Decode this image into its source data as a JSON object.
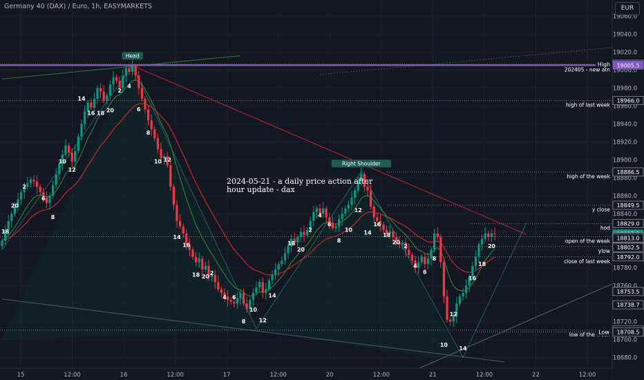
{
  "header": {
    "title": "Germany 40 (DAX) / Euro, 1h, EASYMARKETS",
    "currency": "EUR"
  },
  "annotation": "2024-05-21 - a daily price action after hour update - dax",
  "chart_data": {
    "type": "candlestick",
    "title": "Germany 40 (DAX) / Euro, 1h, EASYMARKETS",
    "ylim": [
      18668,
      19078
    ],
    "y_ticks": [
      19060.0,
      19040.0,
      19020.0,
      19000.0,
      18980.0,
      18960.0,
      18940.0,
      18920.0,
      18900.0,
      18880.0,
      18860.0,
      18840.0,
      18820.0,
      18800.0,
      18780.0,
      18760.0,
      18740.0,
      18720.0,
      18700.0,
      18680.0
    ],
    "x_ticks": [
      "15",
      "12:00",
      "16",
      "12:00",
      "17",
      "12:00",
      "20",
      "12:00",
      "21",
      "12:00",
      "22",
      "12:00"
    ],
    "colors": {
      "up": "#089981",
      "down": "#f23645",
      "ema_fast": "#2e7d32",
      "ema_slow": "#c62828",
      "accent": "#7e57c2"
    },
    "levels": [
      {
        "label": "High",
        "value": 19006.5,
        "tag": "19006.5"
      },
      {
        "label": "202405 - new ath",
        "value": 19005.5,
        "tag": "19005.5"
      },
      {
        "label": "high of last week",
        "value": 18966.0,
        "tag": "18966.0"
      },
      {
        "label": "high of the week",
        "value": 18886.5,
        "tag": "18886.5"
      },
      {
        "label": "y close",
        "value": 18849.5,
        "tag": "18849.5"
      },
      {
        "label": "hod",
        "value": 18829.0,
        "tag": "18829.0"
      },
      {
        "label": "open of the week",
        "value": 18814.5,
        "tag": "18814.5"
      },
      {
        "label": "ylow",
        "value": 18803.5,
        "tag": "18803.5"
      },
      {
        "label": "close of last week",
        "value": 18792.0,
        "tag": "18792.0"
      },
      {
        "label": "low of the week",
        "value": 18710.5,
        "tag": "18710.5"
      },
      {
        "label": "Low",
        "value": 18708.5,
        "tag": "18708.5"
      }
    ],
    "price_tags": [
      {
        "value": 18817.5,
        "text": "18817.5",
        "current": true
      },
      {
        "value": 18814.5,
        "text": "18814.5"
      },
      {
        "value": 18813.0,
        "text": "18813.0"
      },
      {
        "value": 18802.5,
        "text": "18802.5"
      },
      {
        "value": 18753.5,
        "text": "18753.5"
      },
      {
        "value": 18738.7,
        "text": "18738.7"
      }
    ],
    "patterns": [
      {
        "label": "Head",
        "index": 41,
        "value": 19007
      },
      {
        "label": "Right Shoulder",
        "index": 113,
        "value": 18887
      }
    ],
    "wave_labels": [
      {
        "t": "18",
        "i": 1,
        "v": 18818
      },
      {
        "t": "20",
        "i": 4,
        "v": 18847
      },
      {
        "t": "2",
        "i": 7,
        "v": 18868
      },
      {
        "t": "6",
        "i": 13,
        "v": 18855
      },
      {
        "t": "8",
        "i": 16,
        "v": 18834
      },
      {
        "t": "10",
        "i": 19,
        "v": 18896
      },
      {
        "t": "12",
        "i": 22,
        "v": 18887
      },
      {
        "t": "14",
        "i": 25,
        "v": 18966
      },
      {
        "t": "16",
        "i": 28,
        "v": 18950
      },
      {
        "t": "18",
        "i": 31,
        "v": 18950
      },
      {
        "t": "20",
        "i": 34,
        "v": 18953
      },
      {
        "t": "2",
        "i": 37,
        "v": 18975
      },
      {
        "t": "4",
        "i": 40,
        "v": 18980
      },
      {
        "t": "6",
        "i": 43,
        "v": 18954
      },
      {
        "t": "8",
        "i": 46,
        "v": 18928
      },
      {
        "t": "10",
        "i": 49,
        "v": 18896
      },
      {
        "t": "12",
        "i": 52,
        "v": 18898
      },
      {
        "t": "14",
        "i": 55,
        "v": 18812
      },
      {
        "t": "16",
        "i": 58,
        "v": 18803
      },
      {
        "t": "18",
        "i": 61,
        "v": 18770
      },
      {
        "t": "20",
        "i": 64,
        "v": 18768
      },
      {
        "t": "2",
        "i": 66,
        "v": 18772
      },
      {
        "t": "4",
        "i": 70,
        "v": 18745
      },
      {
        "t": "6",
        "i": 73,
        "v": 18745
      },
      {
        "t": "8",
        "i": 76,
        "v": 18718
      },
      {
        "t": "10",
        "i": 79,
        "v": 18731
      },
      {
        "t": "12",
        "i": 82,
        "v": 18719
      },
      {
        "t": "14",
        "i": 85,
        "v": 18747
      },
      {
        "t": "18",
        "i": 91,
        "v": 18805
      },
      {
        "t": "20",
        "i": 94,
        "v": 18798
      },
      {
        "t": "2",
        "i": 97,
        "v": 18820
      },
      {
        "t": "4",
        "i": 100,
        "v": 18836
      },
      {
        "t": "6",
        "i": 103,
        "v": 18826
      },
      {
        "t": "8",
        "i": 106,
        "v": 18808
      },
      {
        "t": "10",
        "i": 109,
        "v": 18820
      },
      {
        "t": "12",
        "i": 112,
        "v": 18842
      },
      {
        "t": "14",
        "i": 115,
        "v": 18817
      },
      {
        "t": "16",
        "i": 118,
        "v": 18826
      },
      {
        "t": "18",
        "i": 121,
        "v": 18814
      },
      {
        "t": "20",
        "i": 124,
        "v": 18806
      },
      {
        "t": "2",
        "i": 127,
        "v": 18802
      },
      {
        "t": "4",
        "i": 130,
        "v": 18780
      },
      {
        "t": "6",
        "i": 133,
        "v": 18773
      },
      {
        "t": "8",
        "i": 136,
        "v": 18788
      },
      {
        "t": "10",
        "i": 139,
        "v": 18692
      },
      {
        "t": "12",
        "i": 142,
        "v": 18726
      },
      {
        "t": "14",
        "i": 145,
        "v": 18688
      },
      {
        "t": "16",
        "i": 148,
        "v": 18766
      },
      {
        "t": "18",
        "i": 151,
        "v": 18782
      },
      {
        "t": "20",
        "i": 154,
        "v": 18802
      }
    ],
    "close": [
      18810,
      18822,
      18832,
      18840,
      18848,
      18856,
      18864,
      18870,
      18874,
      18878,
      18876,
      18870,
      18864,
      18858,
      18852,
      18860,
      18872,
      18884,
      18896,
      18906,
      18916,
      18908,
      18898,
      18910,
      18926,
      18940,
      18954,
      18964,
      18958,
      18968,
      18980,
      18976,
      18966,
      18972,
      18984,
      18992,
      18988,
      18980,
      18994,
      19002,
      18998,
      19004,
      18994,
      18980,
      18968,
      18956,
      18944,
      18934,
      18924,
      18912,
      18902,
      18904,
      18894,
      18870,
      18850,
      18832,
      18826,
      18818,
      18806,
      18800,
      18792,
      18786,
      18790,
      18778,
      18782,
      18770,
      18772,
      18764,
      18756,
      18752,
      18748,
      18744,
      18742,
      18740,
      18746,
      18752,
      18740,
      18734,
      18744,
      18752,
      18758,
      18764,
      18752,
      18756,
      18766,
      18772,
      18778,
      18784,
      18788,
      18796,
      18804,
      18812,
      18808,
      18814,
      18820,
      18816,
      18822,
      18832,
      18842,
      18846,
      18840,
      18846,
      18836,
      18830,
      18824,
      18826,
      18834,
      18840,
      18846,
      18850,
      18858,
      18866,
      18876,
      18884,
      18870,
      18866,
      18848,
      18836,
      18832,
      18828,
      18822,
      18818,
      18820,
      18814,
      18808,
      18806,
      18808,
      18800,
      18794,
      18788,
      18780,
      18786,
      18792,
      18784,
      18790,
      18800,
      18818,
      18814,
      18786,
      18748,
      18722,
      18720,
      18726,
      18740,
      18748,
      18752,
      18760,
      18770,
      18782,
      18792,
      18806,
      18812,
      18818,
      18814,
      18818,
      18817.5
    ]
  }
}
